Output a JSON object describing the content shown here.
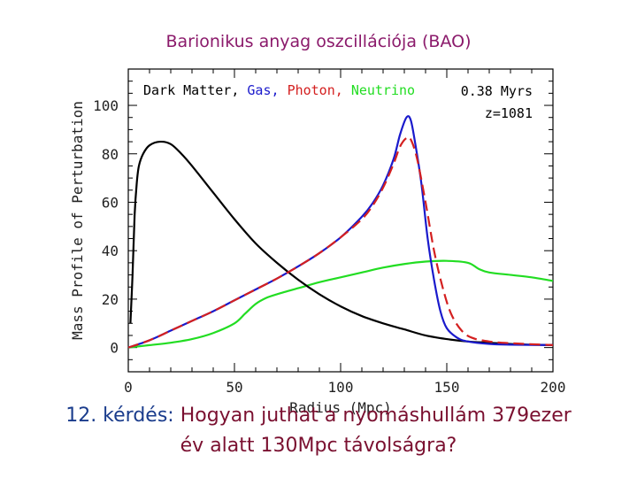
{
  "slide": {
    "title": "Barionikus anyag oszcillációja (BAO)",
    "question_label": "12. kérdés:",
    "question_line1": "Hogyan juthat a nyomáshullám 379ezer",
    "question_line2": "év alatt 130Mpc távolságra?"
  },
  "colors": {
    "title": "#8b1a6b",
    "question": "#7a1030",
    "question_label": "#1a3c8c",
    "dark_matter": "#000000",
    "gas": "#1a1acc",
    "photon": "#d42020",
    "neutrino": "#22dd22"
  },
  "chart_data": {
    "type": "line",
    "xlabel": "Radius (Mpc)",
    "ylabel": "Mass Profile of Perturbation",
    "xlim": [
      0,
      200
    ],
    "ylim": [
      -10,
      115
    ],
    "xticks": [
      0,
      50,
      100,
      150,
      200
    ],
    "yticks": [
      0,
      20,
      40,
      60,
      80,
      100
    ],
    "annotations": {
      "time": "0.38 Myrs",
      "redshift": "z=1081"
    },
    "legend": [
      {
        "text": "Dark Matter,",
        "series": "Dark Matter"
      },
      {
        "text": "Gas,",
        "series": "Gas"
      },
      {
        "text": "Photon,",
        "series": "Photon"
      },
      {
        "text": "Neutrino",
        "series": "Neutrino"
      }
    ],
    "series": [
      {
        "name": "Dark Matter",
        "style": "solid",
        "points": [
          [
            1,
            10
          ],
          [
            2,
            30
          ],
          [
            3,
            55
          ],
          [
            4,
            68
          ],
          [
            5,
            75
          ],
          [
            7,
            80
          ],
          [
            10,
            83.5
          ],
          [
            15,
            85
          ],
          [
            20,
            84
          ],
          [
            25,
            80
          ],
          [
            30,
            75
          ],
          [
            40,
            64
          ],
          [
            50,
            53
          ],
          [
            60,
            43
          ],
          [
            70,
            35
          ],
          [
            80,
            28
          ],
          [
            90,
            22
          ],
          [
            100,
            17
          ],
          [
            110,
            13
          ],
          [
            120,
            10
          ],
          [
            130,
            7.5
          ],
          [
            140,
            5
          ],
          [
            150,
            3.5
          ],
          [
            160,
            2.5
          ],
          [
            170,
            2
          ],
          [
            180,
            1.5
          ],
          [
            190,
            1.2
          ],
          [
            200,
            1
          ]
        ]
      },
      {
        "name": "Gas",
        "style": "solid",
        "points": [
          [
            0,
            0
          ],
          [
            10,
            3
          ],
          [
            20,
            7
          ],
          [
            30,
            11
          ],
          [
            40,
            15
          ],
          [
            50,
            19.5
          ],
          [
            60,
            24
          ],
          [
            70,
            28.5
          ],
          [
            80,
            33.5
          ],
          [
            90,
            39
          ],
          [
            100,
            45.5
          ],
          [
            110,
            54
          ],
          [
            115,
            59.5
          ],
          [
            120,
            67
          ],
          [
            125,
            78
          ],
          [
            128,
            88
          ],
          [
            131,
            95
          ],
          [
            133,
            94
          ],
          [
            135,
            85
          ],
          [
            138,
            68
          ],
          [
            141,
            45
          ],
          [
            144,
            28
          ],
          [
            147,
            15
          ],
          [
            150,
            8
          ],
          [
            155,
            4
          ],
          [
            160,
            2.5
          ],
          [
            170,
            1.5
          ],
          [
            180,
            1.2
          ],
          [
            200,
            1
          ]
        ]
      },
      {
        "name": "Photon",
        "style": "dashed",
        "points": [
          [
            0,
            0
          ],
          [
            10,
            3
          ],
          [
            20,
            7
          ],
          [
            30,
            11
          ],
          [
            40,
            15
          ],
          [
            50,
            19.5
          ],
          [
            60,
            24
          ],
          [
            70,
            28.5
          ],
          [
            80,
            33.5
          ],
          [
            90,
            39
          ],
          [
            100,
            45.5
          ],
          [
            110,
            53
          ],
          [
            115,
            58.5
          ],
          [
            120,
            66
          ],
          [
            125,
            76
          ],
          [
            128,
            83
          ],
          [
            131,
            86.5
          ],
          [
            133,
            86
          ],
          [
            136,
            78
          ],
          [
            140,
            60
          ],
          [
            144,
            40
          ],
          [
            148,
            25
          ],
          [
            152,
            14
          ],
          [
            157,
            7
          ],
          [
            162,
            4
          ],
          [
            170,
            2.5
          ],
          [
            180,
            1.8
          ],
          [
            200,
            1
          ]
        ]
      },
      {
        "name": "Neutrino",
        "style": "solid",
        "points": [
          [
            0,
            0
          ],
          [
            10,
            1
          ],
          [
            20,
            2
          ],
          [
            30,
            3.5
          ],
          [
            40,
            6
          ],
          [
            50,
            10
          ],
          [
            55,
            14
          ],
          [
            60,
            18
          ],
          [
            65,
            20.5
          ],
          [
            70,
            22
          ],
          [
            80,
            24.5
          ],
          [
            90,
            27
          ],
          [
            100,
            29
          ],
          [
            110,
            31
          ],
          [
            120,
            33
          ],
          [
            130,
            34.5
          ],
          [
            140,
            35.5
          ],
          [
            150,
            35.8
          ],
          [
            160,
            35
          ],
          [
            165,
            32.5
          ],
          [
            170,
            31
          ],
          [
            180,
            30
          ],
          [
            190,
            29
          ],
          [
            200,
            27.5
          ]
        ]
      }
    ]
  }
}
